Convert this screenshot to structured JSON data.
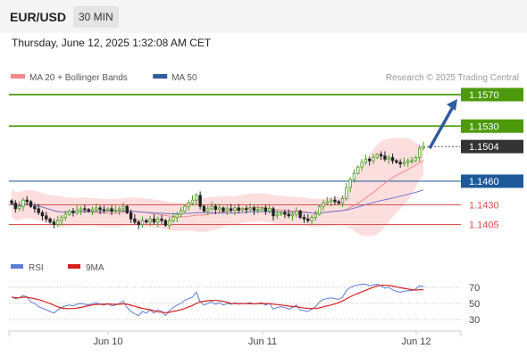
{
  "header": {
    "pair": "EUR/USD",
    "timeframe": "30 MIN",
    "datetime": "Thursday, June 12, 2025 1:32:08 AM CET"
  },
  "legend": [
    {
      "label": "MA 20 + Bollinger Bands",
      "color": "#f28b8b"
    },
    {
      "label": "MA 50",
      "color": "#2e5d9a"
    }
  ],
  "credit": "Research © 2025 Trading Central",
  "rsi_legend": [
    {
      "label": "RSI",
      "color": "#5b7fd6"
    },
    {
      "label": "9MA",
      "color": "#d61f1f"
    }
  ],
  "colors": {
    "resistance": "#4c9a0a",
    "support": "#1e5a9a",
    "secondary_support": "#d9534f",
    "current": "#333333",
    "arrow": "#2f5c9c",
    "candle_up": "#4a9a1e",
    "candle_down": "#222222"
  },
  "chart_data": [
    {
      "type": "candlestick",
      "price_levels": [
        {
          "label": "1.1570",
          "value": 1.157,
          "kind": "resistance"
        },
        {
          "label": "1.1530",
          "value": 1.153,
          "kind": "resistance"
        },
        {
          "label": "1.1504",
          "value": 1.1504,
          "kind": "current"
        },
        {
          "label": "1.1460",
          "value": 1.146,
          "kind": "support"
        },
        {
          "label": "1.1430",
          "value": 1.143,
          "kind": "secondary_support"
        },
        {
          "label": "1.1405",
          "value": 1.1405,
          "kind": "secondary_support"
        }
      ],
      "x_ticks": [
        "Jun 10",
        "Jun 11",
        "Jun 12"
      ],
      "close": [
        1.1432,
        1.1425,
        1.1428,
        1.1436,
        1.1434,
        1.1428,
        1.1425,
        1.142,
        1.1416,
        1.1412,
        1.1408,
        1.1405,
        1.141,
        1.1414,
        1.1418,
        1.1422,
        1.142,
        1.1423,
        1.1425,
        1.1424,
        1.1422,
        1.1424,
        1.1426,
        1.1424,
        1.1423,
        1.1425,
        1.1422,
        1.1423,
        1.1425,
        1.1428,
        1.142,
        1.1412,
        1.1408,
        1.1405,
        1.141,
        1.1408,
        1.1412,
        1.1408,
        1.1412,
        1.141,
        1.1404,
        1.141,
        1.1414,
        1.1418,
        1.1422,
        1.1428,
        1.1432,
        1.1436,
        1.1442,
        1.1428,
        1.1422,
        1.1425,
        1.1428,
        1.1424,
        1.1426,
        1.1422,
        1.1425,
        1.1423,
        1.1426,
        1.1423,
        1.1425,
        1.1424,
        1.1426,
        1.1423,
        1.1424,
        1.1426,
        1.1422,
        1.1425,
        1.1416,
        1.1418,
        1.142,
        1.1418,
        1.1416,
        1.1418,
        1.1422,
        1.1414,
        1.1412,
        1.141,
        1.1414,
        1.1418,
        1.1428,
        1.1432,
        1.1434,
        1.1436,
        1.1434,
        1.1432,
        1.1438,
        1.1452,
        1.1462,
        1.147,
        1.1478,
        1.1484,
        1.1488,
        1.1486,
        1.149,
        1.1494,
        1.1492,
        1.1488,
        1.149,
        1.1486,
        1.1484,
        1.1482,
        1.1484,
        1.1486,
        1.1486,
        1.149,
        1.1502,
        1.1504
      ],
      "rsi": [
        58,
        56,
        57,
        60,
        58,
        52,
        50,
        46,
        44,
        42,
        40,
        38,
        42,
        45,
        47,
        48,
        47,
        49,
        50,
        49,
        48,
        50,
        51,
        49,
        48,
        50,
        47,
        48,
        50,
        53,
        45,
        40,
        37,
        35,
        40,
        38,
        42,
        38,
        42,
        40,
        35,
        41,
        45,
        48,
        50,
        54,
        56,
        58,
        64,
        52,
        48,
        50,
        52,
        49,
        51,
        48,
        50,
        49,
        51,
        49,
        50,
        50,
        51,
        49,
        50,
        51,
        48,
        50,
        43,
        45,
        46,
        45,
        43,
        45,
        48,
        42,
        41,
        40,
        43,
        46,
        52,
        55,
        56,
        57,
        56,
        55,
        58,
        66,
        70,
        72,
        73,
        74,
        74,
        72,
        73,
        74,
        72,
        69,
        70,
        67,
        65,
        64,
        65,
        66,
        66,
        68,
        72,
        71
      ],
      "rsi_levels": [
        70,
        50,
        30
      ],
      "arrow": {
        "from_value": 1.1504,
        "to_value": 1.157
      }
    }
  ]
}
